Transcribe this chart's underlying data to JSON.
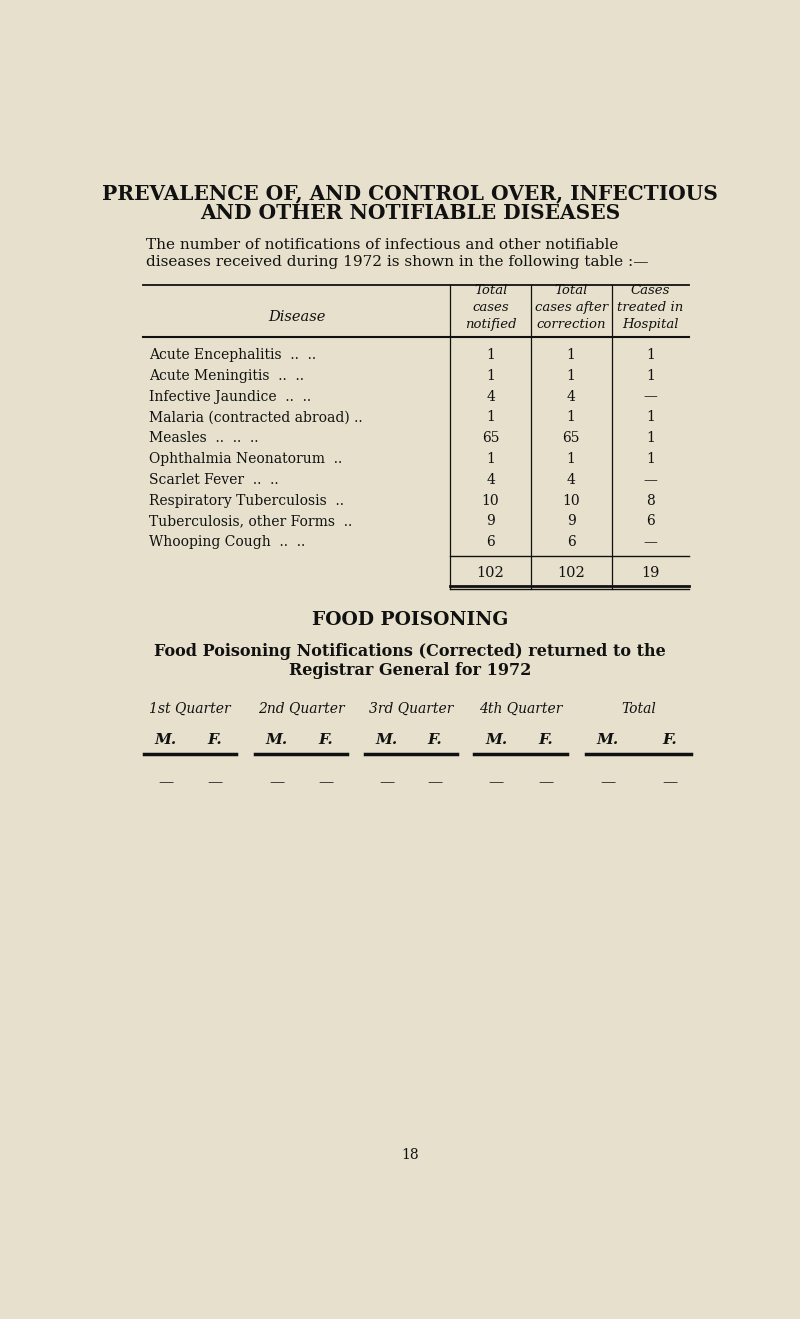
{
  "bg_color": "#e6e0cc",
  "title_line1": "PREVALENCE OF, AND CONTROL OVER, INFECTIOUS",
  "title_line2": "AND OTHER NOTIFIABLE DISEASES",
  "intro_text1": "The number of notifications of infectious and other notifiable",
  "intro_text2": "diseases received during 1972 is shown in the following table :—",
  "diseases": [
    "Acute Encephalitis",
    "Acute Meningitis",
    "Infective Jaundice",
    "Malaria (contracted abroad)",
    "Measles",
    "Ophthalmia Neonatorum",
    "Scarlet Fever",
    "Respiratory Tuberculosis",
    "Tuberculosis, other Forms",
    "Whooping Cough"
  ],
  "dots1": [
    " ..  ..",
    " ..  ..",
    " ..  ..",
    " ..",
    " ..  ..  ..",
    "",
    " ..  ..",
    " ..",
    " ..",
    " ..  .."
  ],
  "total_notified": [
    "1",
    "1",
    "4",
    "1",
    "65",
    "1",
    "4",
    "10",
    "9",
    "6"
  ],
  "total_corrected": [
    "1",
    "1",
    "4",
    "1",
    "65",
    "1",
    "4",
    "10",
    "9",
    "6"
  ],
  "hospital": [
    "1",
    "1",
    "—",
    "1",
    "1",
    "1",
    "—",
    "8",
    "6",
    "—"
  ],
  "totals": [
    "102",
    "102",
    "19"
  ],
  "food_title": "FOOD POISONING",
  "food_subtitle_line1": "Food Poisoning Notifications (Corrected) returned to the",
  "food_subtitle_line2": "Registrar General for 1972",
  "quarter_labels": [
    "1st Quarter",
    "2nd Quarter",
    "3rd Quarter",
    "4th Quarter",
    "Total"
  ],
  "mf_labels": [
    "M.",
    "F.",
    "M.",
    "F.",
    "M.",
    "F.",
    "M.",
    "F.",
    "M.",
    "F."
  ],
  "food_data_row": [
    "—",
    "—",
    "—",
    "—",
    "—",
    "—",
    "—",
    "—",
    "—",
    "—"
  ],
  "page_number": "18",
  "text_color": "#111111",
  "ghost_color": "#b8a880"
}
